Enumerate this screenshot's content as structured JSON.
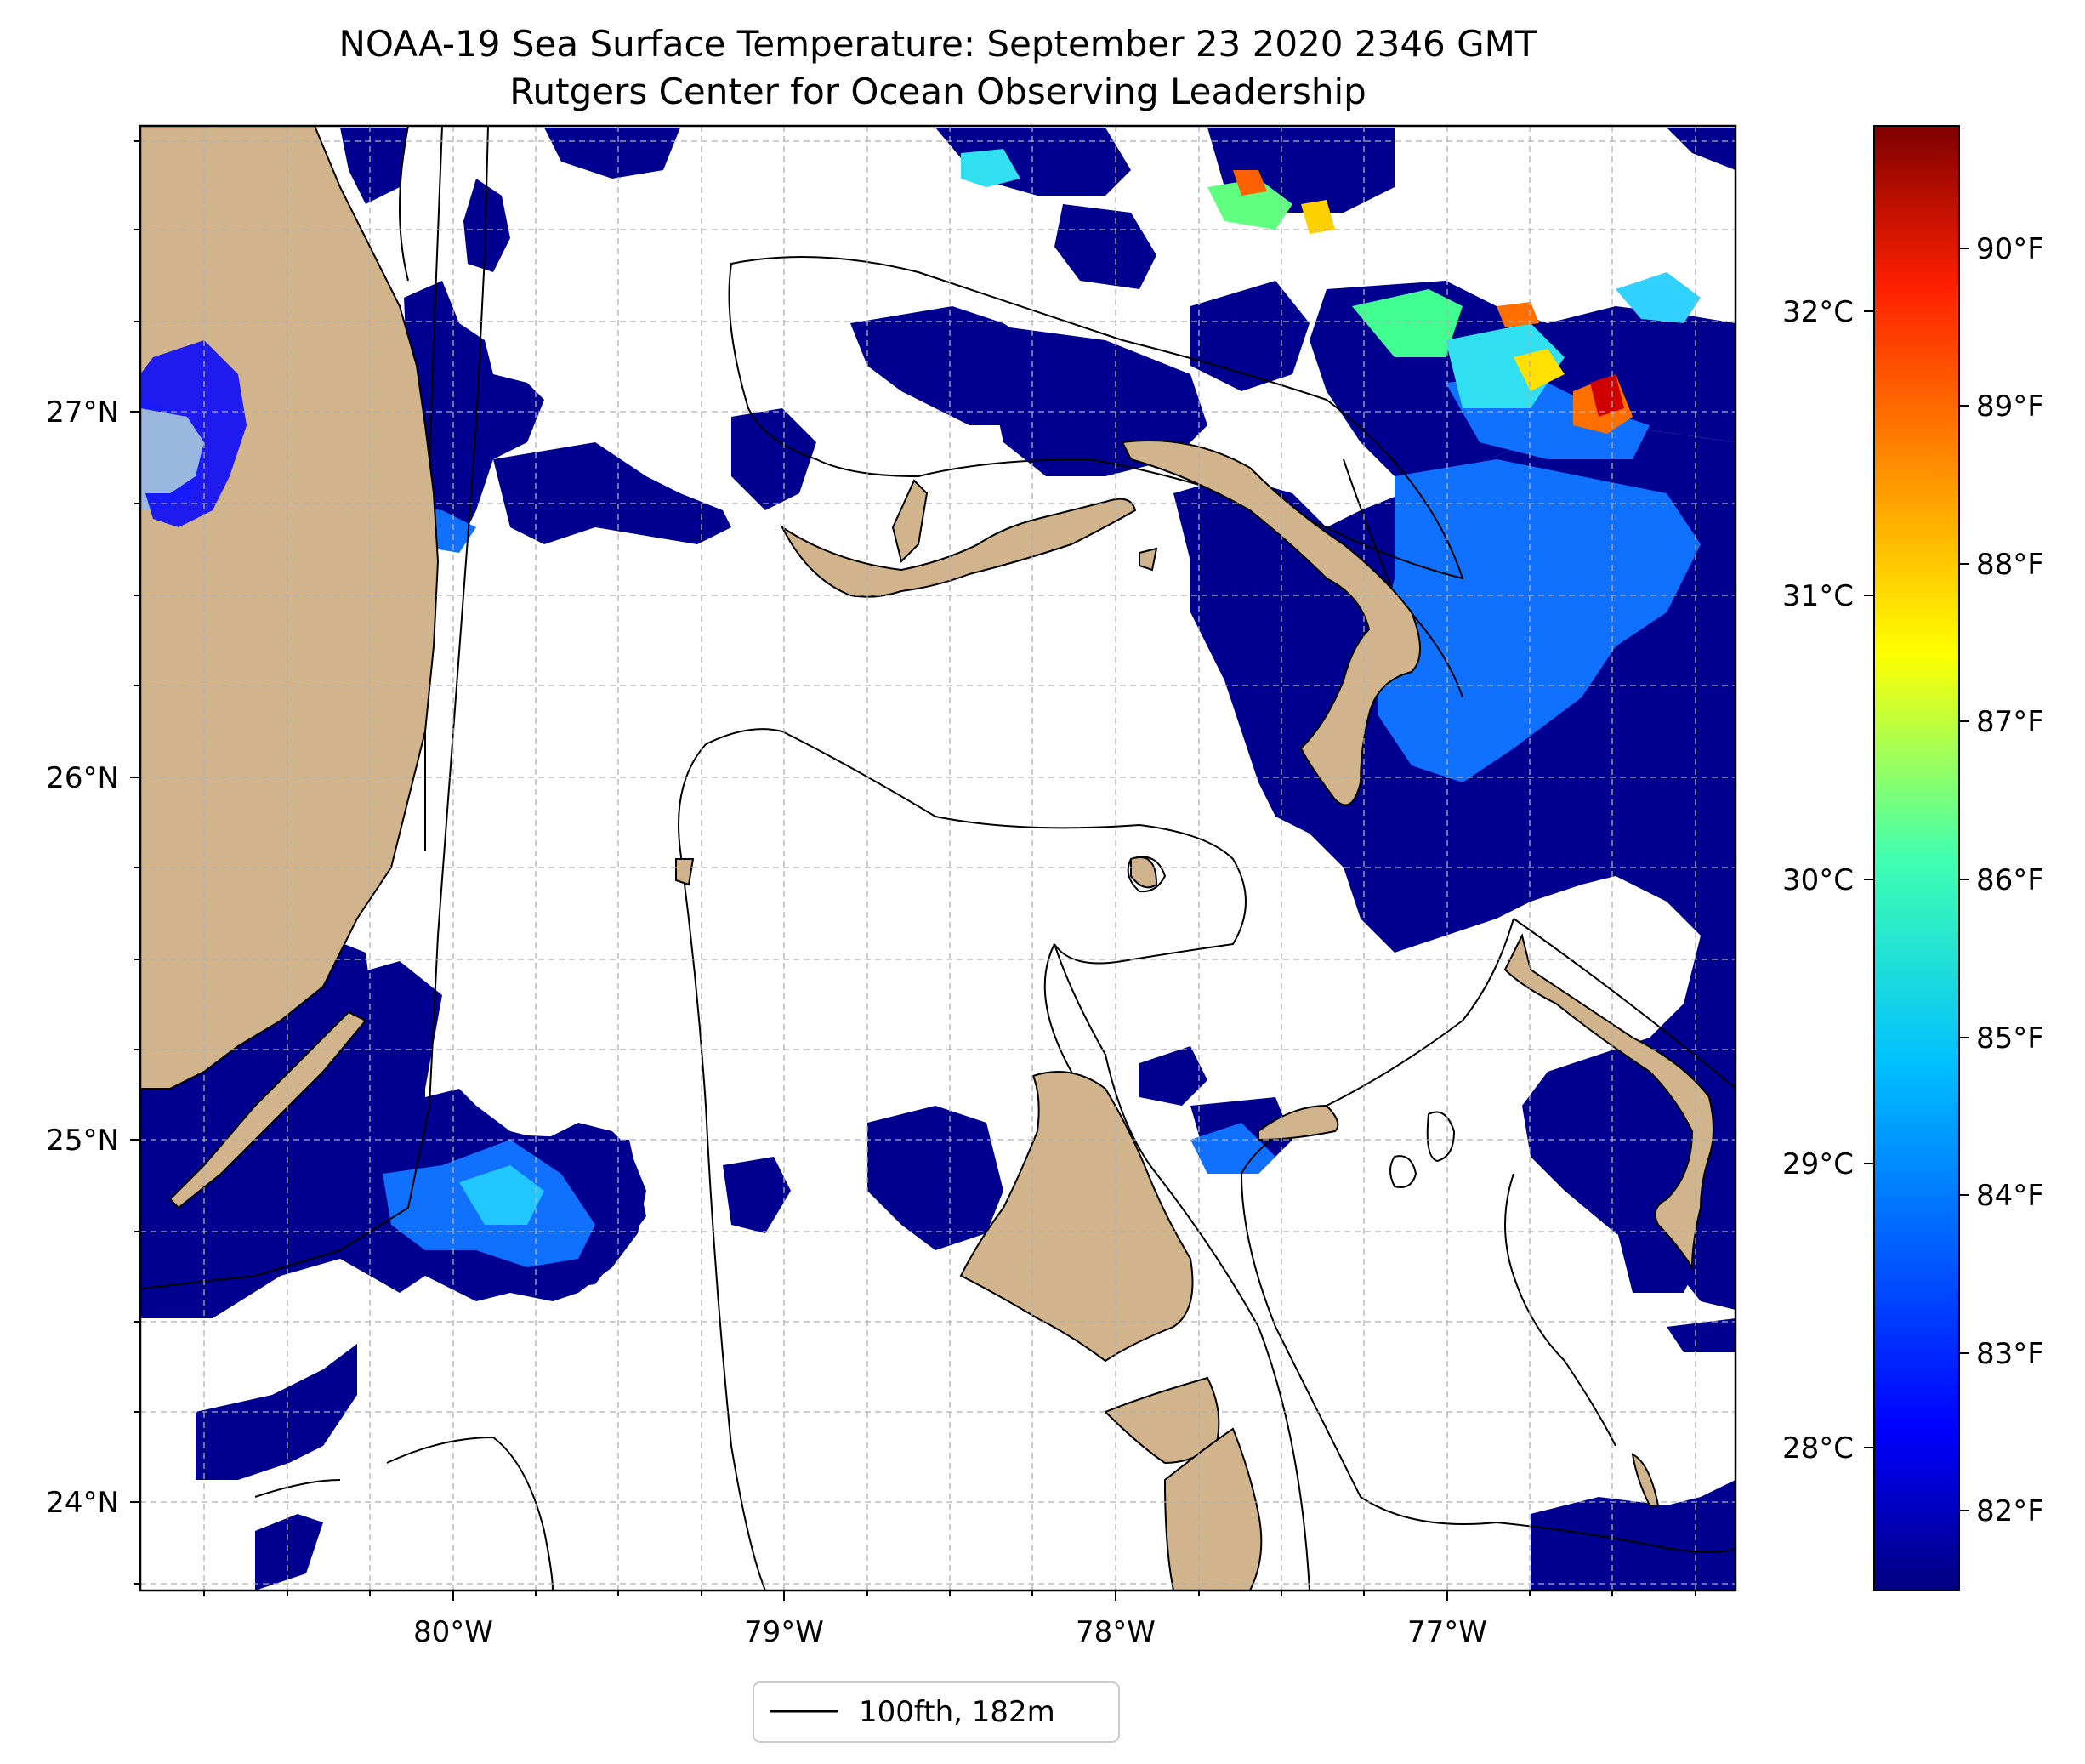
{
  "title": "NOAA-19 Sea Surface Temperature: September 23 2020 2346 GMT",
  "subtitle": "Rutgers Center for Ocean Observing Leadership",
  "map": {
    "lon_range": [
      -80.97,
      -76.08
    ],
    "lat_range": [
      23.75,
      27.8
    ],
    "lon_ticks": [
      "80°W",
      "79°W",
      "78°W",
      "77°W"
    ],
    "lat_ticks": [
      "24°N",
      "25°N",
      "26°N",
      "27°N"
    ],
    "grid": "dashed gray",
    "land_color": "#d2b48c",
    "lake_color": "#9ab7e0"
  },
  "colorbar": {
    "colormap": "jet",
    "fahrenheit_ticks": [
      "82°F",
      "83°F",
      "84°F",
      "85°F",
      "86°F",
      "87°F",
      "88°F",
      "89°F",
      "90°F"
    ],
    "celsius_ticks": [
      "28°C",
      "29°C",
      "30°C",
      "31°C",
      "32°C"
    ],
    "colors": [
      "#000080",
      "#0000ff",
      "#0080ff",
      "#00ffff",
      "#80ff80",
      "#ffff00",
      "#ff8000",
      "#ff0000",
      "#800000"
    ]
  },
  "legend": {
    "label": "100fth, 182m",
    "placement": "bottom-center"
  }
}
